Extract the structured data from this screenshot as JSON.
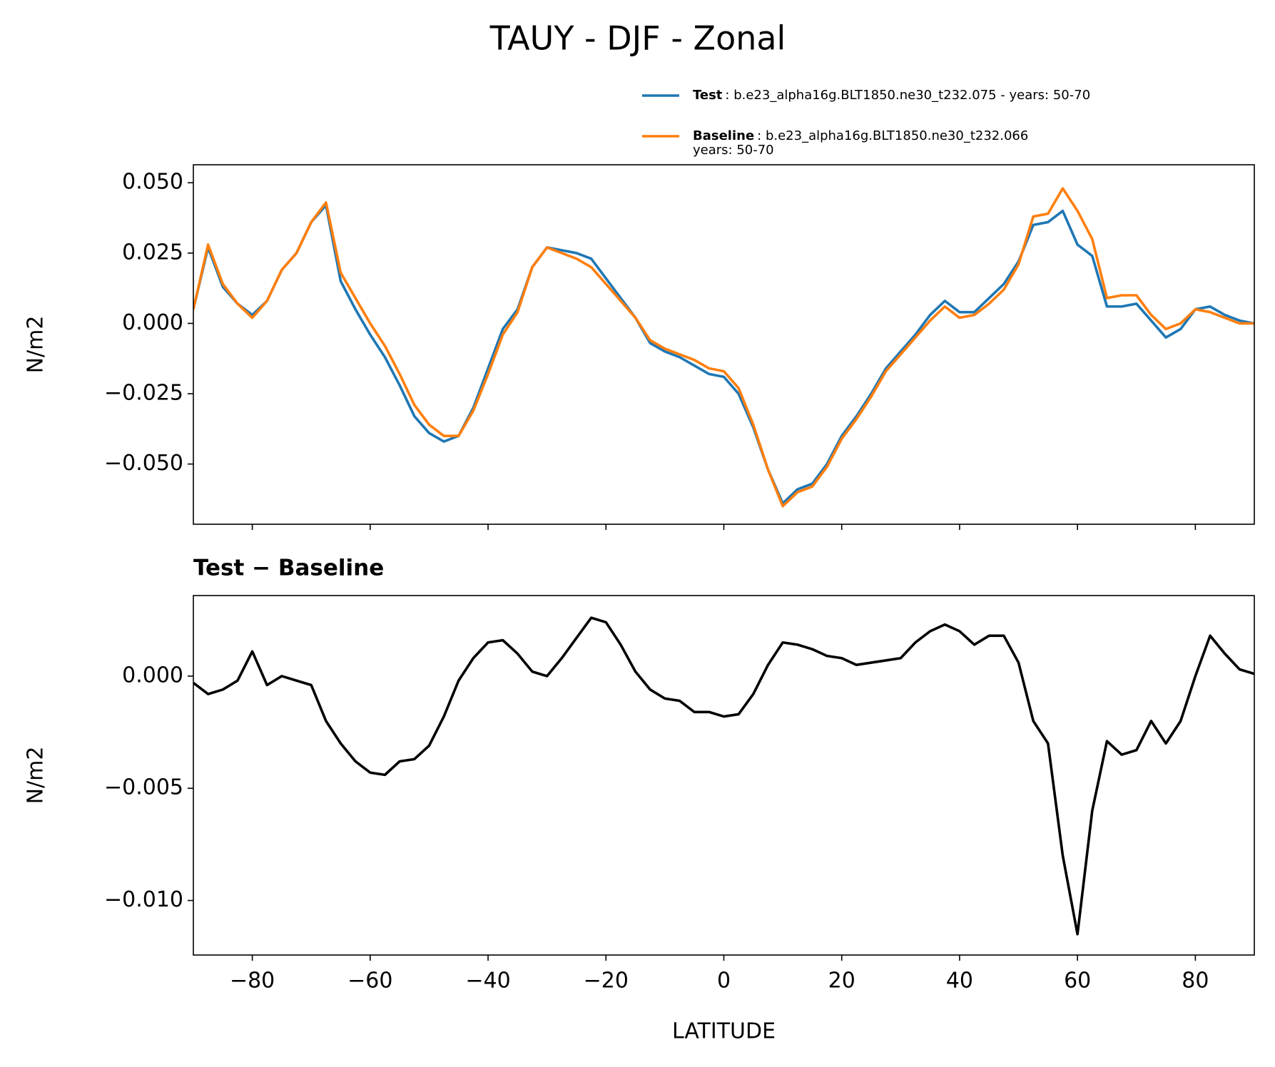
{
  "chart_data": [
    {
      "type": "line",
      "title": "TAUY - DJF - Zonal",
      "ylabel": "N/m2",
      "x": [
        -90,
        -87.5,
        -85,
        -82.5,
        -80,
        -77.5,
        -75,
        -72.5,
        -70,
        -67.5,
        -65,
        -62.5,
        -60,
        -57.5,
        -55,
        -52.5,
        -50,
        -47.5,
        -45,
        -42.5,
        -40,
        -37.5,
        -35,
        -32.5,
        -30,
        -27.5,
        -25,
        -22.5,
        -20,
        -17.5,
        -15,
        -12.5,
        -10,
        -7.5,
        -5,
        -2.5,
        0,
        2.5,
        5,
        7.5,
        10,
        12.5,
        15,
        17.5,
        20,
        22.5,
        25,
        27.5,
        30,
        32.5,
        35,
        37.5,
        40,
        42.5,
        45,
        47.5,
        50,
        52.5,
        55,
        57.5,
        60,
        62.5,
        65,
        67.5,
        70,
        72.5,
        75,
        77.5,
        80,
        82.5,
        85,
        87.5,
        90
      ],
      "series": [
        {
          "name": "Test",
          "description": [
            ": b.e23_alpha16g.BLT1850.ne30_t232.075 - years: 50-70"
          ],
          "color": "#1f77b4",
          "values": [
            0.005,
            0.027,
            0.013,
            0.007,
            0.003,
            0.008,
            0.019,
            0.025,
            0.036,
            0.042,
            0.015,
            0.005,
            -0.004,
            -0.012,
            -0.022,
            -0.033,
            -0.039,
            -0.042,
            -0.04,
            -0.03,
            -0.016,
            -0.002,
            0.005,
            0.02,
            0.027,
            0.026,
            0.025,
            0.023,
            0.016,
            0.009,
            0.002,
            -0.007,
            -0.01,
            -0.012,
            -0.015,
            -0.018,
            -0.019,
            -0.025,
            -0.037,
            -0.052,
            -0.064,
            -0.059,
            -0.057,
            -0.05,
            -0.04,
            -0.033,
            -0.025,
            -0.016,
            -0.01,
            -0.004,
            0.003,
            0.008,
            0.004,
            0.004,
            0.009,
            0.014,
            0.022,
            0.035,
            0.036,
            0.04,
            0.028,
            0.024,
            0.006,
            0.006,
            0.007,
            0.001,
            -0.005,
            -0.002,
            0.005,
            0.006,
            0.003,
            0.001,
            0.0
          ]
        },
        {
          "name": "Baseline",
          "description": [
            ": b.e23_alpha16g.BLT1850.ne30_t232.066",
            "years: 50-70"
          ],
          "color": "#ff7f0e",
          "values": [
            0.005,
            0.028,
            0.014,
            0.007,
            0.002,
            0.008,
            0.019,
            0.025,
            0.036,
            0.043,
            0.018,
            0.009,
            0.0,
            -0.008,
            -0.018,
            -0.029,
            -0.036,
            -0.04,
            -0.04,
            -0.031,
            -0.018,
            -0.004,
            0.004,
            0.02,
            0.027,
            0.025,
            0.023,
            0.02,
            0.014,
            0.008,
            0.002,
            -0.006,
            -0.009,
            -0.011,
            -0.013,
            -0.016,
            -0.017,
            -0.023,
            -0.036,
            -0.052,
            -0.065,
            -0.06,
            -0.058,
            -0.051,
            -0.041,
            -0.034,
            -0.026,
            -0.017,
            -0.011,
            -0.005,
            0.001,
            0.006,
            0.002,
            0.003,
            0.007,
            0.012,
            0.021,
            0.038,
            0.039,
            0.048,
            0.04,
            0.03,
            0.009,
            0.01,
            0.01,
            0.003,
            -0.002,
            0.0,
            0.005,
            0.004,
            0.002,
            0.0,
            0.0
          ]
        }
      ],
      "xlim": [
        -90,
        90
      ],
      "xticks": [
        -80,
        -60,
        -40,
        -20,
        0,
        20,
        40,
        60,
        80
      ],
      "ylim": [
        -0.0714,
        0.0564
      ],
      "yticks": [
        {
          "value": 0.05,
          "label": "0.050"
        },
        {
          "value": 0.025,
          "label": "0.025"
        },
        {
          "value": 0,
          "label": "0.000"
        },
        {
          "value": -0.025,
          "label": "−0.025"
        },
        {
          "value": -0.05,
          "label": "−0.050"
        }
      ],
      "legend": "upper right"
    },
    {
      "type": "line",
      "title": "Test − Baseline",
      "ylabel": "N/m2",
      "xlabel": "LATITUDE",
      "x": [
        -90,
        -87.5,
        -85,
        -82.5,
        -80,
        -77.5,
        -75,
        -72.5,
        -70,
        -67.5,
        -65,
        -62.5,
        -60,
        -57.5,
        -55,
        -52.5,
        -50,
        -47.5,
        -45,
        -42.5,
        -40,
        -37.5,
        -35,
        -32.5,
        -30,
        -27.5,
        -25,
        -22.5,
        -20,
        -17.5,
        -15,
        -12.5,
        -10,
        -7.5,
        -5,
        -2.5,
        0,
        2.5,
        5,
        7.5,
        10,
        12.5,
        15,
        17.5,
        20,
        22.5,
        25,
        27.5,
        30,
        32.5,
        35,
        37.5,
        40,
        42.5,
        45,
        47.5,
        50,
        52.5,
        55,
        57.5,
        60,
        62.5,
        65,
        67.5,
        70,
        72.5,
        75,
        77.5,
        80,
        82.5,
        85,
        87.5,
        90
      ],
      "series": [
        {
          "color": "#000000",
          "values": [
            -0.0003,
            -0.0008,
            -0.0006,
            -0.0002,
            0.0011,
            -0.0004,
            0.0,
            -0.0002,
            -0.0004,
            -0.002,
            -0.003,
            -0.0038,
            -0.0043,
            -0.0044,
            -0.0038,
            -0.0037,
            -0.0031,
            -0.0018,
            -0.0002,
            0.0008,
            0.0015,
            0.0016,
            0.001,
            0.0002,
            0.0,
            0.0008,
            0.0017,
            0.0026,
            0.0024,
            0.0014,
            0.0002,
            -0.0006,
            -0.001,
            -0.0011,
            -0.0016,
            -0.0016,
            -0.0018,
            -0.0017,
            -0.0008,
            0.0005,
            0.0015,
            0.0014,
            0.0012,
            0.0009,
            0.0008,
            0.0005,
            0.0006,
            0.0007,
            0.0008,
            0.0015,
            0.002,
            0.0023,
            0.002,
            0.0014,
            0.0018,
            0.0018,
            0.0006,
            -0.002,
            -0.003,
            -0.008,
            -0.0115,
            -0.006,
            -0.0029,
            -0.0035,
            -0.0033,
            -0.002,
            -0.003,
            -0.002,
            0.0,
            0.0018,
            0.001,
            0.0003,
            0.0001
          ]
        }
      ],
      "xlim": [
        -90,
        90
      ],
      "xticks": [
        {
          "value": -80,
          "label": "−80"
        },
        {
          "value": -60,
          "label": "−60"
        },
        {
          "value": -40,
          "label": "−40"
        },
        {
          "value": -20,
          "label": "−20"
        },
        0,
        20,
        40,
        60,
        80
      ],
      "ylim": [
        -0.01243,
        0.00359
      ],
      "yticks": [
        {
          "value": 0,
          "label": "0.000"
        },
        {
          "value": -0.005,
          "label": "−0.005"
        },
        {
          "value": -0.01,
          "label": "−0.010"
        }
      ]
    }
  ]
}
